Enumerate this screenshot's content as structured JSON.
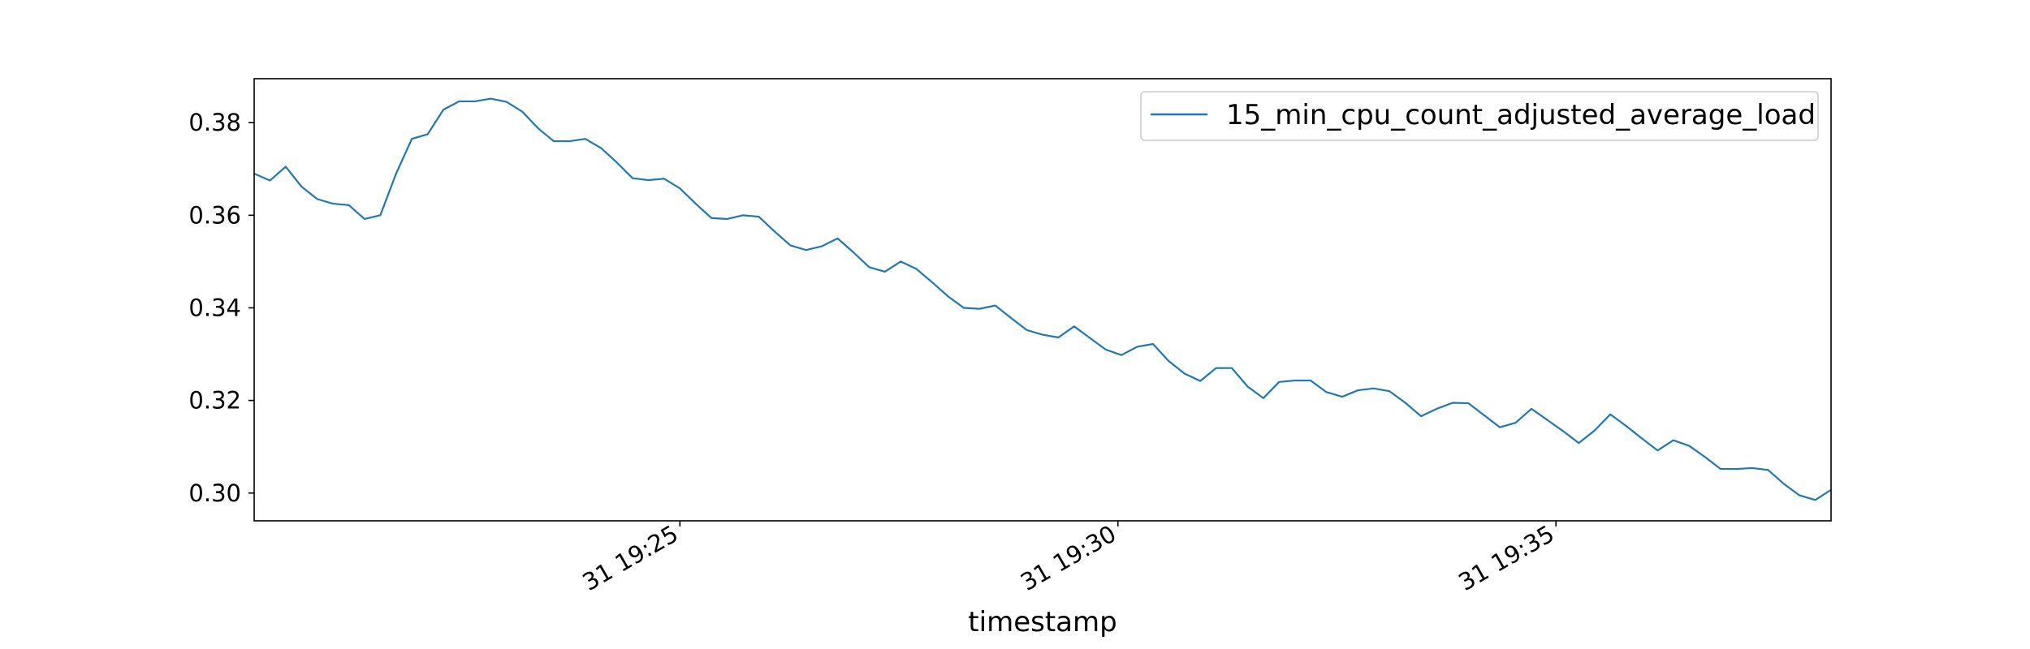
{
  "chart_data": {
    "type": "line",
    "title": "",
    "xlabel": "timestamp",
    "ylabel": "",
    "x_range_minutes": [
      0,
      18
    ],
    "ylim": [
      0.294,
      0.3895
    ],
    "yticks": [
      0.3,
      0.32,
      0.34,
      0.36,
      0.38
    ],
    "ytick_labels": [
      "0.30",
      "0.32",
      "0.34",
      "0.36",
      "0.38"
    ],
    "xticks": [
      {
        "minute": 4.86,
        "label": "31 19:25"
      },
      {
        "minute": 9.86,
        "label": "31 19:30"
      },
      {
        "minute": 14.86,
        "label": "31 19:35"
      }
    ],
    "grid": false,
    "legend_position": "top-right",
    "series": [
      {
        "name": "15_min_cpu_count_adjusted_average_load",
        "color": "#1f77b4",
        "values": [
          0.369,
          0.3675,
          0.3705,
          0.3662,
          0.3635,
          0.3625,
          0.3622,
          0.3592,
          0.36,
          0.369,
          0.3765,
          0.3775,
          0.3828,
          0.3846,
          0.3846,
          0.3852,
          0.3845,
          0.3824,
          0.3788,
          0.376,
          0.376,
          0.3765,
          0.3745,
          0.3714,
          0.368,
          0.3676,
          0.3679,
          0.3658,
          0.3625,
          0.3594,
          0.3592,
          0.36,
          0.3597,
          0.3565,
          0.3535,
          0.3525,
          0.3533,
          0.355,
          0.352,
          0.3488,
          0.3478,
          0.35,
          0.3484,
          0.3455,
          0.3425,
          0.34,
          0.3398,
          0.3405,
          0.3378,
          0.3352,
          0.3342,
          0.3336,
          0.336,
          0.3335,
          0.331,
          0.3298,
          0.3316,
          0.3322,
          0.3285,
          0.3258,
          0.3242,
          0.327,
          0.327,
          0.323,
          0.3205,
          0.324,
          0.3243,
          0.3243,
          0.3218,
          0.3208,
          0.3222,
          0.3226,
          0.322,
          0.3195,
          0.3166,
          0.3182,
          0.3195,
          0.3194,
          0.3168,
          0.3142,
          0.3152,
          0.3182,
          0.3158,
          0.3134,
          0.3108,
          0.3135,
          0.317,
          0.3145,
          0.3118,
          0.3092,
          0.3114,
          0.3102,
          0.3078,
          0.3052,
          0.3052,
          0.3054,
          0.305,
          0.302,
          0.2995,
          0.2985,
          0.3007
        ]
      }
    ]
  }
}
